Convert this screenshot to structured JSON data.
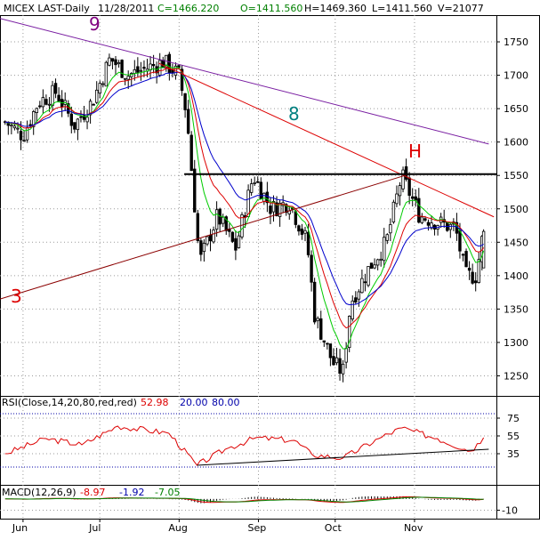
{
  "header": {
    "symbol": "MICEX LAST-Daily",
    "date": "11/28/2011",
    "close": "C=1466.220",
    "open": "O=1411.560",
    "high": "H=1469.360",
    "low": "L=1411.560",
    "volume": "V=21077"
  },
  "rsi_header": {
    "label": "RSI(Close,14,20,80,red,red)",
    "value": "52.98",
    "low_level": "20.00",
    "high_level": "80.00"
  },
  "macd_header": {
    "label": "MACD(12,26,9)",
    "v1": "-8.97",
    "v2": "-1.92",
    "v3": "-7.05"
  },
  "annotations": {
    "wave9": "9",
    "wave8": "8",
    "wave3": "3",
    "head": "H"
  },
  "colors": {
    "price_bars": "#000000",
    "ma_fast": "#00cc00",
    "ma_mid": "#dd0000",
    "ma_slow": "#0000cc",
    "resistance": "#000000",
    "trend_9": "#7a1fa2",
    "trend_8": "#dd0000",
    "trend_3": "#8b0000",
    "rsi_line": "#dd0000",
    "rsi_levels": "#0000aa",
    "wave9_text": "#800080",
    "wave8_text": "#008080",
    "wave3_text": "#dd0000",
    "head_text": "#dd0000"
  },
  "chart_data": [
    {
      "type": "candlestick",
      "panel": "price",
      "x_labels": [
        "Jun",
        "Jul",
        "Aug",
        "Sep",
        "Oct",
        "Nov"
      ],
      "y_ticks": [
        1250,
        1300,
        1350,
        1400,
        1450,
        1500,
        1550,
        1600,
        1650,
        1700,
        1750
      ],
      "ylim": [
        1220,
        1790
      ],
      "close_path": [
        {
          "x": "2011-05-25",
          "y": 1630
        },
        {
          "x": "2011-06-01",
          "y": 1610
        },
        {
          "x": "2011-06-07",
          "y": 1660
        },
        {
          "x": "2011-06-14",
          "y": 1675
        },
        {
          "x": "2011-06-21",
          "y": 1625
        },
        {
          "x": "2011-06-28",
          "y": 1660
        },
        {
          "x": "2011-07-05",
          "y": 1725
        },
        {
          "x": "2011-07-12",
          "y": 1700
        },
        {
          "x": "2011-07-19",
          "y": 1710
        },
        {
          "x": "2011-07-26",
          "y": 1720
        },
        {
          "x": "2011-08-01",
          "y": 1700
        },
        {
          "x": "2011-08-04",
          "y": 1640
        },
        {
          "x": "2011-08-09",
          "y": 1420
        },
        {
          "x": "2011-08-16",
          "y": 1490
        },
        {
          "x": "2011-08-23",
          "y": 1440
        },
        {
          "x": "2011-08-30",
          "y": 1550
        },
        {
          "x": "2011-09-06",
          "y": 1500
        },
        {
          "x": "2011-09-13",
          "y": 1510
        },
        {
          "x": "2011-09-20",
          "y": 1450
        },
        {
          "x": "2011-09-23",
          "y": 1340
        },
        {
          "x": "2011-09-30",
          "y": 1270
        },
        {
          "x": "2011-10-04",
          "y": 1255
        },
        {
          "x": "2011-10-07",
          "y": 1360
        },
        {
          "x": "2011-10-14",
          "y": 1410
        },
        {
          "x": "2011-10-21",
          "y": 1450
        },
        {
          "x": "2011-10-27",
          "y": 1550
        },
        {
          "x": "2011-11-03",
          "y": 1490
        },
        {
          "x": "2011-11-10",
          "y": 1480
        },
        {
          "x": "2011-11-17",
          "y": 1470
        },
        {
          "x": "2011-11-21",
          "y": 1400
        },
        {
          "x": "2011-11-25",
          "y": 1400
        },
        {
          "x": "2011-11-28",
          "y": 1466.22
        }
      ],
      "last_bar": {
        "date": "2011-11-28",
        "open": 1411.56,
        "high": 1469.36,
        "low": 1411.56,
        "close": 1466.22
      }
    },
    {
      "type": "line",
      "panel": "rsi",
      "y_ticks": [
        35,
        55,
        75
      ],
      "levels": [
        20,
        80
      ],
      "last_value": 52.98,
      "series": [
        {
          "name": "RSI(Close,14,20,80,red,red)",
          "points": [
            {
              "x": "2011-05-25",
              "y": 35
            },
            {
              "x": "2011-06-10",
              "y": 52
            },
            {
              "x": "2011-06-24",
              "y": 45
            },
            {
              "x": "2011-07-08",
              "y": 66
            },
            {
              "x": "2011-07-28",
              "y": 58
            },
            {
              "x": "2011-08-08",
              "y": 22
            },
            {
              "x": "2011-08-19",
              "y": 40
            },
            {
              "x": "2011-08-31",
              "y": 53
            },
            {
              "x": "2011-09-15",
              "y": 50
            },
            {
              "x": "2011-09-22",
              "y": 34
            },
            {
              "x": "2011-10-04",
              "y": 30
            },
            {
              "x": "2011-10-18",
              "y": 52
            },
            {
              "x": "2011-10-27",
              "y": 64
            },
            {
              "x": "2011-11-10",
              "y": 52
            },
            {
              "x": "2011-11-23",
              "y": 38
            },
            {
              "x": "2011-11-28",
              "y": 52.98
            }
          ]
        }
      ]
    },
    {
      "type": "line",
      "panel": "macd",
      "y_ticks": [
        -10
      ],
      "last_values": [
        -8.97,
        -1.92,
        -7.05
      ]
    }
  ]
}
